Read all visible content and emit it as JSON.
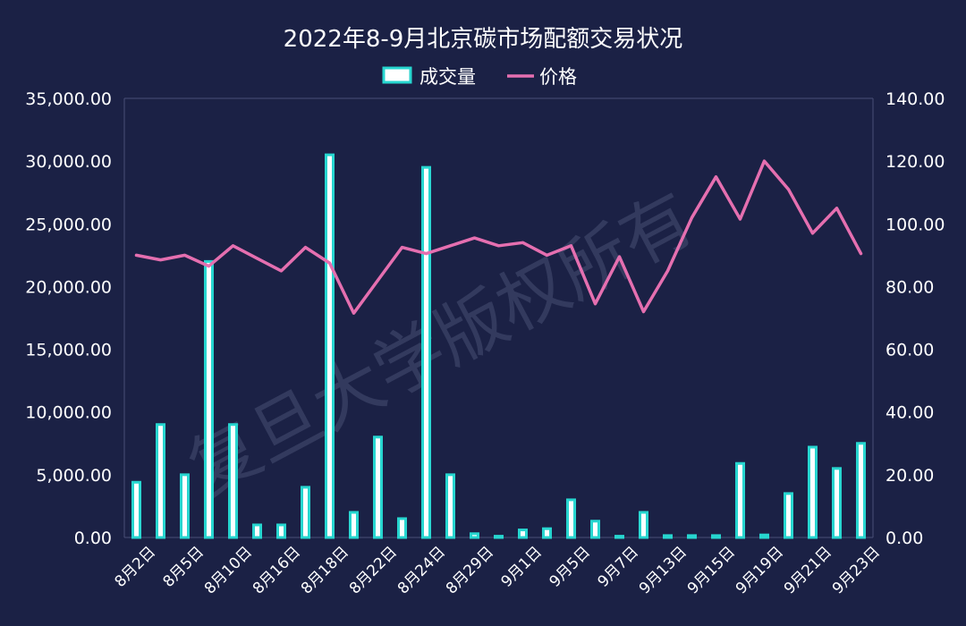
{
  "chart_data": {
    "type": "bar",
    "title": "2022年8-9月北京碳市场配额交易状况",
    "watermark": "复旦大学版权所有",
    "legend": {
      "position": "top",
      "entries": [
        "成交量",
        "价格"
      ]
    },
    "colors": {
      "background": "#1b2145",
      "bar_fill": "#ffffff",
      "bar_edge": "#27d6d0",
      "line": "#e56fb0",
      "grid": "#4a5078"
    },
    "x_tick_labels": [
      "8月2日",
      "8月5日",
      "8月10日",
      "8月16日",
      "8月18日",
      "8月22日",
      "8月24日",
      "8月29日",
      "9月1日",
      "9月5日",
      "9月7日",
      "9月13日",
      "9月15日",
      "9月19日",
      "9月21日",
      "9月23日"
    ],
    "y_left": {
      "ylim": [
        0,
        35000
      ],
      "ticks": [
        "0.00",
        "5,000.00",
        "10,000.00",
        "15,000.00",
        "20,000.00",
        "25,000.00",
        "30,000.00",
        "35,000.00"
      ]
    },
    "y_right": {
      "ylim": [
        0,
        140
      ],
      "ticks": [
        "0.00",
        "20.00",
        "40.00",
        "60.00",
        "80.00",
        "100.00",
        "120.00",
        "140.00"
      ]
    },
    "series": [
      {
        "name": "成交量",
        "type": "bar",
        "axis": "left",
        "values": [
          4400,
          9000,
          5000,
          22000,
          9000,
          1000,
          1000,
          4000,
          30500,
          2000,
          8000,
          1500,
          29500,
          5000,
          300,
          100,
          600,
          700,
          3000,
          1300,
          100,
          2000,
          150,
          150,
          150,
          5900,
          200,
          3500,
          7200,
          5500,
          7500
        ]
      },
      {
        "name": "价格",
        "type": "line",
        "axis": "right",
        "values": [
          90,
          88.5,
          90,
          86.5,
          93,
          89,
          85,
          92.5,
          87.5,
          71.5,
          82,
          92.5,
          90.5,
          93,
          95.5,
          93,
          94,
          90,
          93,
          74.5,
          89.5,
          72,
          85,
          102,
          115,
          101.5,
          120,
          111,
          97,
          105,
          90.5
        ]
      }
    ]
  }
}
